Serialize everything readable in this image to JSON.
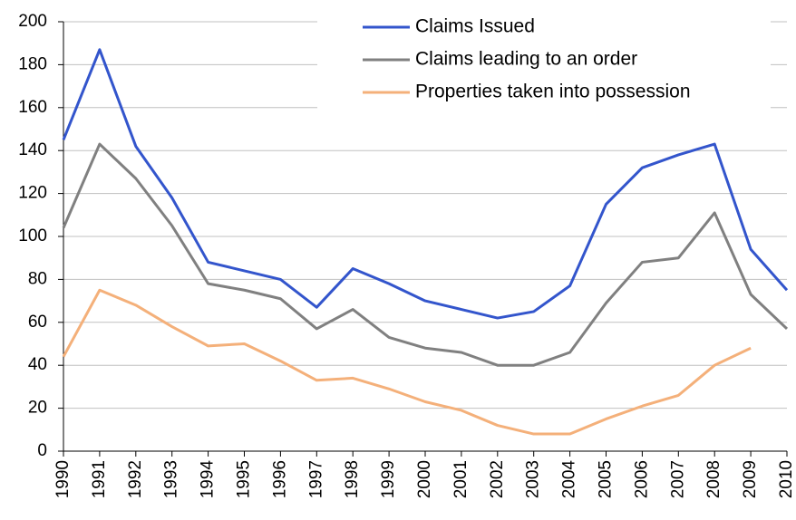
{
  "chart_data": {
    "type": "line",
    "categories": [
      "1990",
      "1991",
      "1992",
      "1993",
      "1994",
      "1995",
      "1996",
      "1997",
      "1998",
      "1999",
      "2000",
      "2001",
      "2002",
      "2003",
      "2004",
      "2005",
      "2006",
      "2007",
      "2008",
      "2009",
      "2010"
    ],
    "series": [
      {
        "name": "Claims Issued",
        "color": "#3355cc",
        "values": [
          145,
          187,
          142,
          118,
          88,
          84,
          80,
          67,
          85,
          78,
          70,
          66,
          62,
          65,
          77,
          115,
          132,
          138,
          143,
          94,
          75
        ]
      },
      {
        "name": "Claims leading to an order",
        "color": "#808080",
        "values": [
          104,
          143,
          127,
          105,
          78,
          75,
          71,
          57,
          66,
          53,
          48,
          46,
          40,
          40,
          46,
          69,
          88,
          90,
          111,
          73,
          57
        ]
      },
      {
        "name": "Properties taken into possession",
        "color": "#f4b07a",
        "values": [
          44,
          75,
          68,
          58,
          49,
          50,
          42,
          33,
          34,
          29,
          23,
          19,
          12,
          8,
          8,
          15,
          21,
          26,
          40,
          48,
          null
        ]
      }
    ],
    "ylim": [
      0,
      200
    ],
    "yticks": [
      0,
      20,
      40,
      60,
      80,
      100,
      120,
      140,
      160,
      180,
      200
    ],
    "grid": true
  }
}
